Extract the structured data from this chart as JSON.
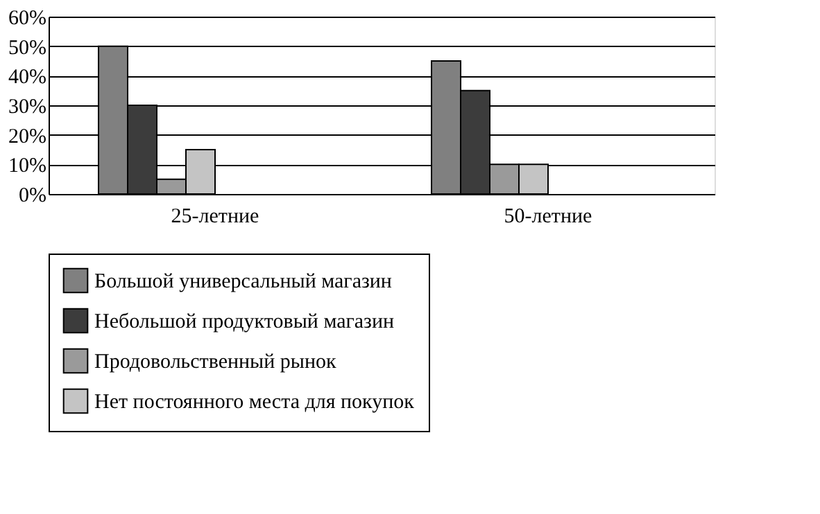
{
  "chart_data": {
    "type": "bar",
    "categories": [
      "25-летние",
      "50-летние"
    ],
    "series": [
      {
        "name": "Большой универсальный магазин",
        "color": "#808080",
        "values": [
          50,
          45
        ]
      },
      {
        "name": "Небольшой продуктовый магазин",
        "color": "#3c3c3c",
        "values": [
          30,
          35
        ]
      },
      {
        "name": "Продовольственный рынок",
        "color": "#9a9a9a",
        "values": [
          5,
          10
        ]
      },
      {
        "name": "Нет постоянного места для покупок",
        "color": "#c4c4c4",
        "values": [
          15,
          10
        ]
      }
    ],
    "ylim": [
      0,
      60
    ],
    "yticks": [
      {
        "value": 0,
        "label": "0%"
      },
      {
        "value": 10,
        "label": "10%"
      },
      {
        "value": 20,
        "label": "20%"
      },
      {
        "value": 30,
        "label": "30%"
      },
      {
        "value": 40,
        "label": "40%"
      },
      {
        "value": 50,
        "label": "50%"
      },
      {
        "value": 60,
        "label": "60%"
      }
    ],
    "grid": "y",
    "legend": "bottom"
  }
}
